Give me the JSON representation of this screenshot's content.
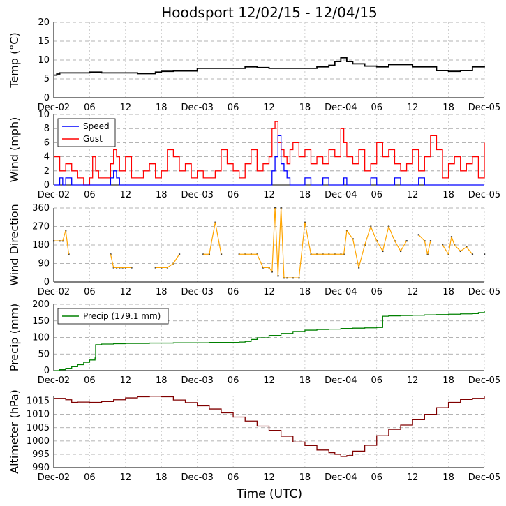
{
  "title": "Hoodsport 12/02/15 - 12/04/15",
  "xlabel": "Time (UTC)",
  "x_tick_labels": [
    "Dec-02",
    "06",
    "12",
    "18",
    "Dec-03",
    "06",
    "12",
    "18",
    "Dec-04",
    "06",
    "12",
    "18",
    "Dec-05"
  ],
  "colors": {
    "temp": "#000000",
    "speed": "#0000ff",
    "gust": "#ff0000",
    "direction": "#ffa500",
    "precip": "#008000",
    "altimeter": "#800000"
  },
  "chart_data": [
    {
      "type": "line",
      "ylabel": "Temp (°C)",
      "ylim": [
        0,
        20
      ],
      "yticks": [
        0,
        5,
        10,
        15,
        20
      ],
      "grid": true,
      "series": [
        {
          "x_hours": [
            0,
            0.5,
            1,
            2,
            4,
            6,
            8,
            10,
            12,
            14,
            16,
            17,
            18,
            20,
            24,
            28,
            32,
            34,
            36,
            38,
            40,
            42,
            44,
            46,
            47,
            48,
            49,
            50,
            52,
            54,
            56,
            58,
            60,
            62,
            64,
            66,
            68,
            70,
            72
          ],
          "values": [
            6,
            6.3,
            6.6,
            6.6,
            6.6,
            6.8,
            6.6,
            6.6,
            6.6,
            6.4,
            6.4,
            6.8,
            7,
            7.1,
            7.8,
            7.8,
            8.2,
            8,
            7.8,
            7.8,
            7.8,
            7.8,
            8.2,
            8.6,
            9.6,
            10.6,
            9.6,
            9,
            8.4,
            8.2,
            8.8,
            8.8,
            8.2,
            8.2,
            7.2,
            7.0,
            7.2,
            8.2,
            8.4
          ]
        }
      ]
    },
    {
      "type": "line",
      "ylabel": "Wind (mph)",
      "ylim": [
        0,
        10
      ],
      "yticks": [
        0,
        2,
        4,
        6,
        8,
        10
      ],
      "grid": true,
      "legend": "top-left",
      "series": [
        {
          "name": "Speed",
          "x_hours": [
            0,
            1,
            1.5,
            2,
            3,
            5,
            6,
            6.5,
            7,
            8,
            9,
            9.5,
            10,
            10.5,
            11,
            12,
            13,
            14,
            15,
            16,
            18,
            19,
            20,
            22,
            24,
            26,
            28,
            30,
            31,
            32,
            34,
            35,
            36,
            36.5,
            37,
            37.5,
            38,
            38.5,
            39,
            39.5,
            40,
            41,
            42,
            43,
            44,
            45,
            46,
            47,
            48,
            48.5,
            49,
            50,
            51,
            52,
            53,
            54,
            55,
            56,
            57,
            58,
            60,
            61,
            62,
            64,
            66,
            67,
            68,
            70,
            72
          ],
          "values": [
            0,
            1,
            0,
            1,
            0,
            0,
            0,
            0,
            0,
            0,
            0,
            1,
            2,
            1,
            0,
            0,
            0,
            0,
            0,
            0,
            0,
            0,
            0,
            0,
            0,
            0,
            0,
            0,
            0,
            0,
            0,
            0,
            0,
            2,
            4,
            7,
            3,
            2,
            1,
            0,
            0,
            0,
            1,
            0,
            0,
            1,
            0,
            0,
            0,
            1,
            0,
            0,
            0,
            0,
            1,
            0,
            0,
            0,
            1,
            0,
            0,
            1,
            0,
            0,
            0,
            0,
            0,
            0,
            0
          ]
        },
        {
          "name": "Gust",
          "x_hours": [
            0,
            1,
            2,
            3,
            4,
            5,
            6,
            6.5,
            7,
            7.5,
            8,
            9,
            9.5,
            10,
            10.5,
            11,
            12,
            13,
            14,
            15,
            16,
            17,
            18,
            19,
            20,
            21,
            22,
            23,
            24,
            25,
            26,
            27,
            28,
            29,
            30,
            31,
            32,
            33,
            34,
            35,
            36,
            36.5,
            37,
            37.5,
            38,
            38.5,
            39,
            39.5,
            40,
            41,
            42,
            43,
            44,
            45,
            46,
            47,
            48,
            48.5,
            49,
            50,
            51,
            52,
            53,
            54,
            55,
            56,
            57,
            58,
            59,
            60,
            61,
            62,
            63,
            64,
            65,
            66,
            67,
            68,
            69,
            70,
            71,
            72
          ],
          "values": [
            4,
            2,
            3,
            2,
            1,
            0,
            1,
            4,
            2,
            1,
            1,
            1,
            3,
            5,
            4,
            2,
            4,
            1,
            1,
            2,
            3,
            1,
            2,
            5,
            4,
            2,
            3,
            1,
            2,
            1,
            1,
            2,
            5,
            3,
            2,
            1,
            3,
            5,
            2,
            3,
            4,
            8,
            9,
            6,
            5,
            4,
            3,
            5,
            6,
            4,
            5,
            3,
            4,
            3,
            5,
            4,
            8,
            6,
            4,
            3,
            5,
            2,
            3,
            6,
            4,
            5,
            3,
            2,
            3,
            5,
            2,
            4,
            7,
            5,
            1,
            3,
            4,
            2,
            3,
            4,
            1,
            6
          ]
        }
      ]
    },
    {
      "type": "scatter",
      "ylabel": "Wind Direction",
      "ylim": [
        0,
        360
      ],
      "yticks": [
        0,
        90,
        180,
        270,
        360
      ],
      "grid": true,
      "series": [
        {
          "x_hours": [
            0,
            1,
            1.5,
            2,
            2.5,
            9.5,
            10,
            10.5,
            11,
            11.5,
            12,
            13,
            17,
            18,
            19,
            20,
            21,
            25,
            26,
            27,
            28,
            31,
            32,
            33,
            34,
            35,
            36,
            36.5,
            37,
            37.5,
            38,
            38.5,
            39,
            40,
            41,
            42,
            43,
            44,
            45,
            46,
            47,
            48,
            48.5,
            49,
            50,
            51,
            52,
            53,
            54,
            55,
            56,
            57,
            58,
            59,
            61,
            62,
            62.5,
            63,
            65,
            66,
            66.5,
            67,
            68,
            69,
            70,
            72
          ],
          "values": [
            200,
            200,
            200,
            250,
            135,
            135,
            70,
            70,
            70,
            70,
            70,
            70,
            70,
            70,
            70,
            90,
            135,
            135,
            135,
            290,
            135,
            135,
            135,
            135,
            135,
            70,
            70,
            50,
            360,
            30,
            360,
            20,
            20,
            20,
            20,
            290,
            135,
            135,
            135,
            135,
            135,
            135,
            135,
            250,
            210,
            70,
            180,
            270,
            200,
            150,
            270,
            200,
            150,
            200,
            230,
            200,
            135,
            200,
            180,
            135,
            220,
            180,
            150,
            170,
            135,
            135
          ]
        }
      ]
    },
    {
      "type": "line",
      "ylabel": "Precip (mm)",
      "ylim": [
        0,
        200
      ],
      "yticks": [
        0,
        50,
        100,
        150,
        200
      ],
      "grid": true,
      "legend": "top-left",
      "series": [
        {
          "name": "Precip (179.1 mm)",
          "x_hours": [
            0,
            1,
            2,
            3,
            4,
            5,
            6,
            6.9,
            7,
            8,
            10,
            12,
            14,
            16,
            18,
            20,
            22,
            24,
            26,
            28,
            30,
            31,
            32,
            33,
            34,
            36,
            38,
            40,
            42,
            44,
            46,
            48,
            50,
            52,
            54,
            54.9,
            55,
            56,
            58,
            60,
            62,
            64,
            66,
            68,
            70,
            71,
            72
          ],
          "values": [
            0,
            3,
            7,
            12,
            18,
            25,
            32,
            38,
            78,
            80,
            81,
            82,
            82,
            83,
            83,
            84,
            84,
            84,
            85,
            85,
            85,
            86,
            88,
            94,
            99,
            106,
            112,
            118,
            122,
            124,
            125,
            127,
            128,
            129,
            130,
            130,
            164,
            165,
            166,
            167,
            168,
            169,
            170,
            171,
            172,
            175,
            179.1
          ]
        }
      ]
    },
    {
      "type": "line",
      "ylabel": "Altimeter (hPa)",
      "ylim": [
        990,
        1017
      ],
      "yticks": [
        990,
        995,
        1000,
        1005,
        1010,
        1015
      ],
      "grid": true,
      "series": [
        {
          "x_hours": [
            0,
            2,
            3,
            4,
            6,
            8,
            10,
            12,
            14,
            16,
            18,
            20,
            22,
            24,
            26,
            28,
            30,
            32,
            34,
            36,
            38,
            40,
            42,
            44,
            46,
            47,
            48,
            49,
            50,
            52,
            54,
            56,
            58,
            60,
            62,
            64,
            66,
            68,
            70,
            72
          ],
          "values": [
            1016,
            1015.5,
            1014.5,
            1014.6,
            1014.5,
            1014.8,
            1015.5,
            1016.2,
            1016.6,
            1016.8,
            1016.6,
            1015.4,
            1014.4,
            1013.2,
            1012,
            1010.6,
            1009,
            1007.5,
            1005.6,
            1004,
            1001.8,
            999.6,
            998.3,
            996.6,
            995.6,
            995,
            994.2,
            994.5,
            996.2,
            998.4,
            1002,
            1004.4,
            1006,
            1008,
            1010,
            1012.5,
            1014.5,
            1015.6,
            1016,
            1016.7
          ]
        }
      ]
    }
  ]
}
